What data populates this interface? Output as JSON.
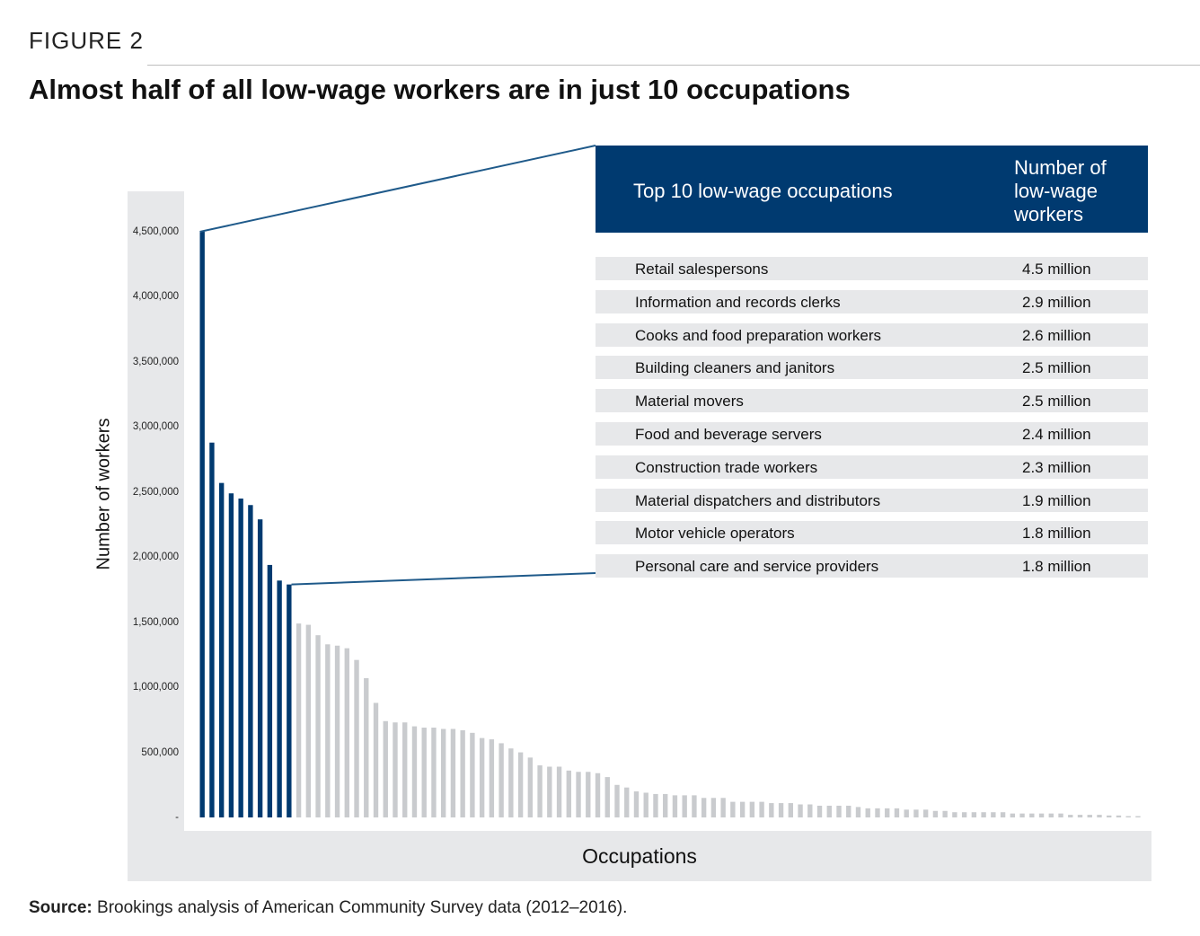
{
  "figure_label": "FIGURE 2",
  "title": "Almost half of all low-wage workers are in just 10 occupations",
  "source_label": "Source:",
  "source_text": "Brookings analysis of American Community Survey data (2012–2016).",
  "colors": {
    "highlight": "#003a70",
    "other": "#c9cbce",
    "panel": "#e7e8ea"
  },
  "table": {
    "header_occupation": "Top 10 low-wage occupations",
    "header_count": "Number of low-wage workers",
    "rows": [
      {
        "occupation": "Retail salespersons",
        "workers": "4.5 million"
      },
      {
        "occupation": "Information and records clerks",
        "workers": "2.9 million"
      },
      {
        "occupation": "Cooks and food preparation workers",
        "workers": "2.6 million"
      },
      {
        "occupation": "Building cleaners and janitors",
        "workers": "2.5 million"
      },
      {
        "occupation": "Material movers",
        "workers": "2.5 million"
      },
      {
        "occupation": "Food and beverage servers",
        "workers": "2.4 million"
      },
      {
        "occupation": "Construction trade workers",
        "workers": "2.3 million"
      },
      {
        "occupation": "Material dispatchers and distributors",
        "workers": "1.9 million"
      },
      {
        "occupation": "Motor vehicle operators",
        "workers": "1.8 million"
      },
      {
        "occupation": "Personal care and service providers",
        "workers": "1.8 million"
      }
    ]
  },
  "chart_data": {
    "type": "bar",
    "xlabel": "Occupations",
    "ylabel": "Number of workers",
    "ylim": [
      0,
      4500000
    ],
    "yticks": [
      "-",
      "500,000",
      "1,000,000",
      "1,500,000",
      "2,000,000",
      "2,500,000",
      "3,000,000",
      "3,500,000",
      "4,000,000",
      "4,500,000"
    ],
    "highlight_count": 10,
    "values": [
      4500000,
      2880000,
      2570000,
      2490000,
      2450000,
      2400000,
      2290000,
      1940000,
      1820000,
      1790000,
      1490000,
      1480000,
      1400000,
      1330000,
      1320000,
      1300000,
      1210000,
      1070000,
      880000,
      740000,
      730000,
      730000,
      700000,
      690000,
      690000,
      680000,
      680000,
      670000,
      650000,
      610000,
      600000,
      570000,
      530000,
      500000,
      460000,
      400000,
      390000,
      390000,
      360000,
      350000,
      350000,
      340000,
      310000,
      250000,
      230000,
      200000,
      190000,
      180000,
      180000,
      170000,
      170000,
      170000,
      150000,
      150000,
      150000,
      120000,
      120000,
      120000,
      120000,
      110000,
      110000,
      110000,
      100000,
      100000,
      90000,
      90000,
      90000,
      90000,
      80000,
      70000,
      70000,
      70000,
      70000,
      60000,
      60000,
      60000,
      50000,
      50000,
      40000,
      40000,
      40000,
      40000,
      40000,
      40000,
      30000,
      30000,
      30000,
      30000,
      30000,
      30000,
      20000,
      20000,
      20000,
      20000,
      15000,
      15000,
      10000,
      10000
    ]
  }
}
